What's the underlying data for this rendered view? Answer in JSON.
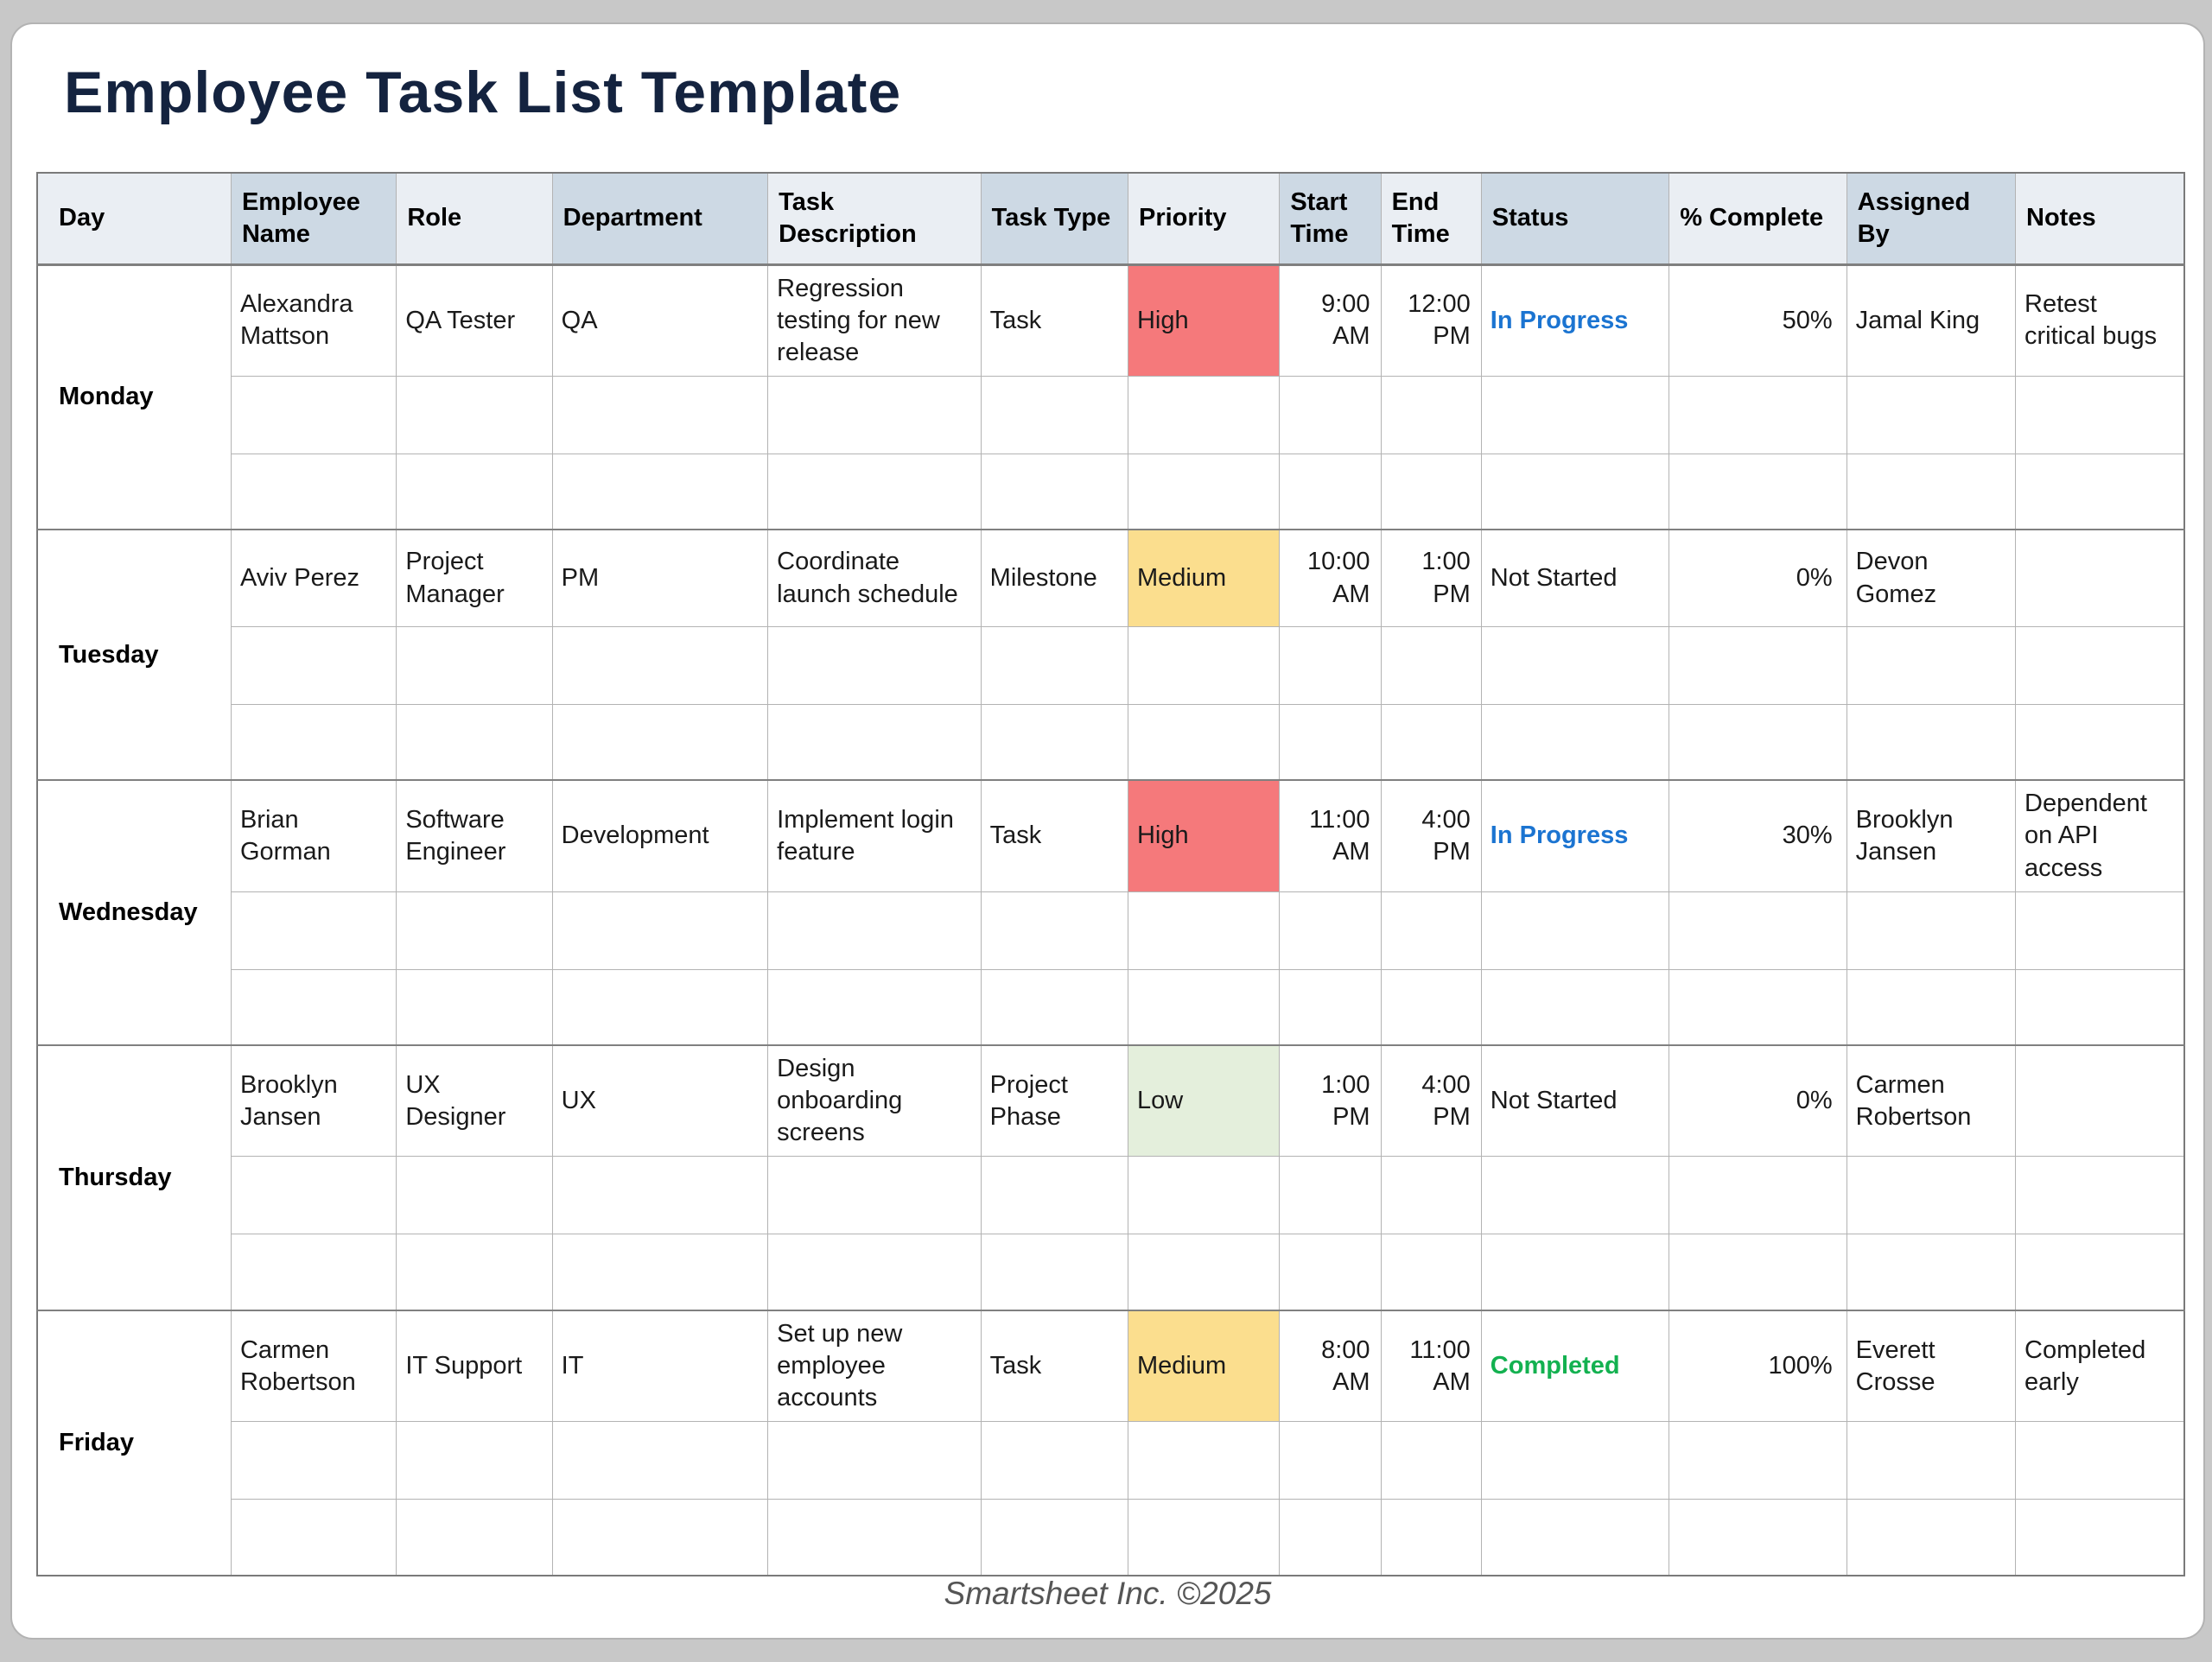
{
  "page": {
    "title": "Employee Task List Template",
    "footer": "Smartsheet Inc. ©2025"
  },
  "colors": {
    "title_text": "#14233f",
    "header_light": "#eaeef3",
    "header_dark": "#cdd9e4",
    "priority_high_fill": "#f5797b",
    "priority_medium_fill": "#fbde8e",
    "priority_low_fill": "#e4efdc",
    "status_in_progress": "#1b74d1",
    "status_completed": "#13b150",
    "status_not_started": "#1a1a1a"
  },
  "table": {
    "headers": [
      "Day",
      "Employee Name",
      "Role",
      "Department",
      "Task Description",
      "Task Type",
      "Priority",
      "Start Time",
      "End Time",
      "Status",
      "% Complete",
      "Assigned By",
      "Notes"
    ],
    "groups": [
      {
        "day": "Monday",
        "task": {
          "employee": "Alexandra Mattson",
          "role": "QA Tester",
          "department": "QA",
          "description": "Regression testing for new release",
          "type": "Task",
          "priority": "High",
          "start": "9:00 AM",
          "end": "12:00 PM",
          "status": "In Progress",
          "complete": "50%",
          "assigned_by": "Jamal King",
          "notes": "Retest critical bugs"
        }
      },
      {
        "day": "Tuesday",
        "task": {
          "employee": "Aviv Perez",
          "role": "Project Manager",
          "department": "PM",
          "description": "Coordinate launch schedule",
          "type": "Milestone",
          "priority": "Medium",
          "start": "10:00 AM",
          "end": "1:00 PM",
          "status": "Not Started",
          "complete": "0%",
          "assigned_by": "Devon Gomez",
          "notes": ""
        }
      },
      {
        "day": "Wednesday",
        "task": {
          "employee": "Brian Gorman",
          "role": "Software Engineer",
          "department": "Development",
          "description": "Implement login feature",
          "type": "Task",
          "priority": "High",
          "start": "11:00 AM",
          "end": "4:00 PM",
          "status": "In Progress",
          "complete": "30%",
          "assigned_by": "Brooklyn Jansen",
          "notes": "Dependent on API access"
        }
      },
      {
        "day": "Thursday",
        "task": {
          "employee": "Brooklyn Jansen",
          "role": "UX Designer",
          "department": "UX",
          "description": "Design onboarding screens",
          "type": "Project Phase",
          "priority": "Low",
          "start": "1:00 PM",
          "end": "4:00 PM",
          "status": "Not Started",
          "complete": "0%",
          "assigned_by": "Carmen Robertson",
          "notes": ""
        }
      },
      {
        "day": "Friday",
        "task": {
          "employee": "Carmen Robertson",
          "role": "IT Support",
          "department": "IT",
          "description": "Set up new employee accounts",
          "type": "Task",
          "priority": "Medium",
          "start": "8:00 AM",
          "end": "11:00 AM",
          "status": "Completed",
          "complete": "100%",
          "assigned_by": "Everett Crosse",
          "notes": "Completed early"
        }
      }
    ]
  }
}
